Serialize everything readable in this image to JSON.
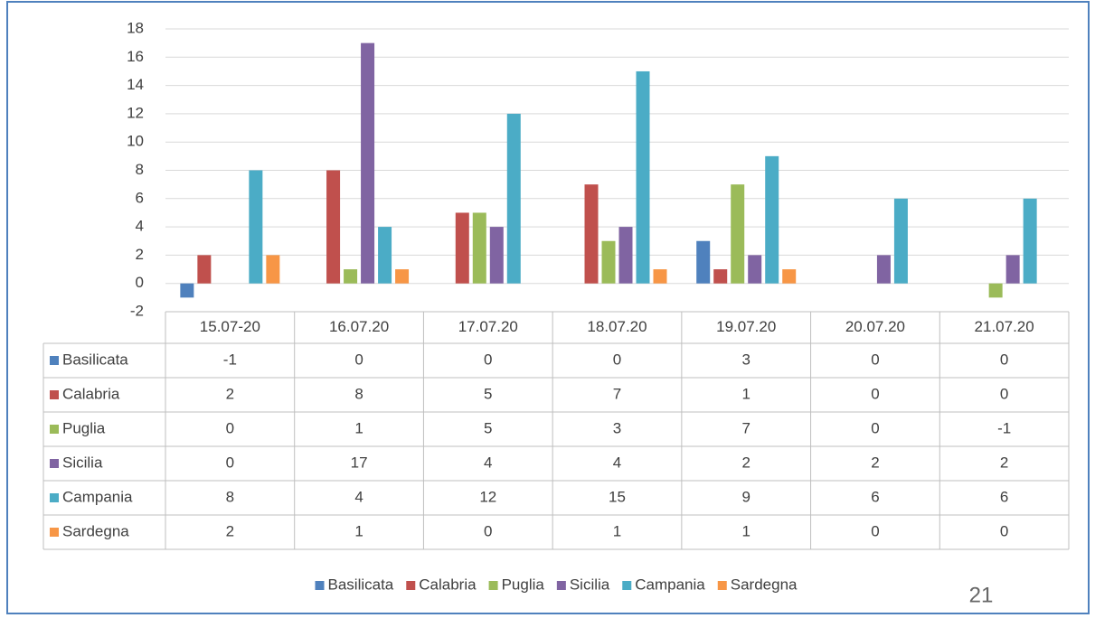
{
  "chart_data": {
    "type": "bar",
    "categories": [
      "15.07-20",
      "16.07.20",
      "17.07.20",
      "18.07.20",
      "19.07.20",
      "20.07.20",
      "21.07.20"
    ],
    "series": [
      {
        "name": "Basilicata",
        "color": "#4f81bd",
        "values": [
          -1,
          0,
          0,
          0,
          3,
          0,
          0
        ]
      },
      {
        "name": "Calabria",
        "color": "#c0504d",
        "values": [
          2,
          8,
          5,
          7,
          1,
          0,
          0
        ]
      },
      {
        "name": "Puglia",
        "color": "#9bbb59",
        "values": [
          0,
          1,
          5,
          3,
          7,
          0,
          -1
        ]
      },
      {
        "name": "Sicilia",
        "color": "#8064a2",
        "values": [
          0,
          17,
          4,
          4,
          2,
          2,
          2
        ]
      },
      {
        "name": "Campania",
        "color": "#4bacc6",
        "values": [
          8,
          4,
          12,
          15,
          9,
          6,
          6
        ]
      },
      {
        "name": "Sardegna",
        "color": "#f79646",
        "values": [
          2,
          1,
          0,
          1,
          1,
          0,
          0
        ]
      }
    ],
    "ylim": [
      -2,
      18
    ],
    "yticks": [
      -2,
      0,
      2,
      4,
      6,
      8,
      10,
      12,
      14,
      16,
      18
    ],
    "grid": true,
    "legend": "bottom"
  },
  "slide_number": "21"
}
